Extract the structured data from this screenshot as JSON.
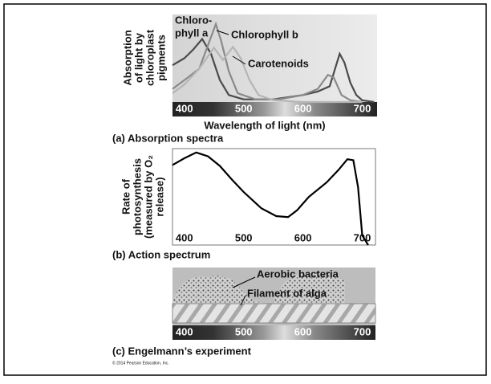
{
  "chart_data": [
    {
      "type": "line",
      "caption": "(a) Absorption spectra",
      "y_label_lines": [
        "Absorption",
        "of light by",
        "chloroplast",
        "pigments"
      ],
      "x_label": "Wavelength of light (nm)",
      "xlim": [
        380,
        725
      ],
      "xticks": [
        400,
        500,
        600,
        700
      ],
      "ylim": [
        0,
        100
      ],
      "series": [
        {
          "name": [
            "Chloro-",
            "phyll a"
          ],
          "color": "#4a4a4a",
          "x": [
            380,
            400,
            415,
            430,
            445,
            460,
            475,
            500,
            550,
            600,
            625,
            645,
            655,
            662,
            670,
            680,
            690,
            700,
            720
          ],
          "values": [
            42,
            50,
            60,
            72,
            55,
            25,
            8,
            3,
            3,
            8,
            12,
            18,
            40,
            55,
            45,
            22,
            8,
            2,
            0
          ]
        },
        {
          "name": "Chlorophyll b",
          "color": "#8a8a8a",
          "x": [
            380,
            400,
            425,
            440,
            453,
            462,
            475,
            490,
            520,
            560,
            600,
            625,
            642,
            652,
            665,
            680,
            700
          ],
          "values": [
            15,
            25,
            38,
            65,
            89,
            70,
            35,
            10,
            3,
            3,
            8,
            15,
            31,
            28,
            8,
            2,
            0
          ]
        },
        {
          "name": "Carotenoids",
          "color": "#b5b5b5",
          "x": [
            380,
            400,
            425,
            450,
            465,
            482,
            495,
            510,
            525,
            550,
            600,
            700
          ],
          "values": [
            10,
            20,
            38,
            62,
            48,
            63,
            50,
            25,
            8,
            2,
            0,
            0
          ]
        }
      ]
    },
    {
      "type": "line",
      "caption": "(b) Action spectrum",
      "y_label_lines": [
        "Rate of",
        "photosynthesis",
        "(measured by O₂",
        "release)"
      ],
      "xlim": [
        380,
        725
      ],
      "xticks": [
        400,
        500,
        600,
        700
      ],
      "ylim": [
        0,
        100
      ],
      "series": [
        {
          "color": "#000000",
          "x": [
            380,
            400,
            420,
            440,
            460,
            480,
            500,
            530,
            555,
            575,
            590,
            610,
            640,
            660,
            675,
            685,
            693,
            700,
            710
          ],
          "values": [
            83,
            90,
            96,
            92,
            82,
            68,
            55,
            38,
            30,
            29,
            36,
            50,
            65,
            78,
            89,
            88,
            60,
            10,
            0
          ]
        }
      ]
    }
  ],
  "engelmann": {
    "caption": "(c) Engelmann’s experiment",
    "labels": [
      "Aerobic bacteria",
      "Filament of alga"
    ],
    "xlim": [
      380,
      725
    ],
    "xticks": [
      400,
      500,
      600,
      700
    ]
  },
  "credit": "© 2014 Pearson Education, Inc."
}
